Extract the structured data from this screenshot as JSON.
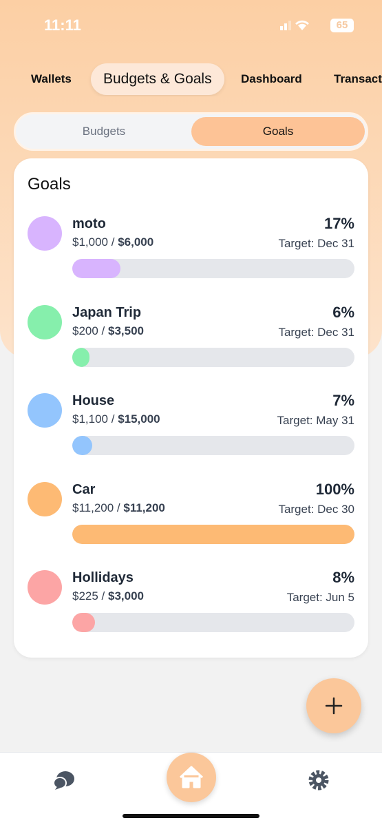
{
  "status_bar": {
    "time": "11:11",
    "battery": "65"
  },
  "tabs": [
    "Wallets",
    "Budgets & Goals",
    "Dashboard",
    "Transactions"
  ],
  "segments": [
    "Budgets",
    "Goals"
  ],
  "card_title": "Goals",
  "goals": [
    {
      "name": "moto",
      "saved": "$1,000 /",
      "target_amount": "$6,000",
      "percent": {
        "value": 17,
        "label": "17%"
      },
      "target": "Target: Dec 31",
      "color": "#d8b4fe"
    },
    {
      "name": "Japan Trip",
      "saved": "$200 /",
      "target_amount": "$3,500",
      "percent": {
        "value": 6,
        "label": "6%"
      },
      "target": "Target: Dec 31",
      "color": "#86efac"
    },
    {
      "name": "House",
      "saved": "$1,100 /",
      "target_amount": "$15,000",
      "percent": {
        "value": 7,
        "label": "7%"
      },
      "target": "Target: May 31",
      "color": "#93c5fd"
    },
    {
      "name": "Car",
      "saved": "$11,200 /",
      "target_amount": "$11,200",
      "percent": {
        "value": 100,
        "label": "100%"
      },
      "target": "Target: Dec 30",
      "color": "#fdba74"
    },
    {
      "name": "Hollidays",
      "saved": "$225 /",
      "target_amount": "$3,000",
      "percent": {
        "value": 8,
        "label": "8%"
      },
      "target": "Target: Jun 5",
      "color": "#fca5a5"
    }
  ]
}
